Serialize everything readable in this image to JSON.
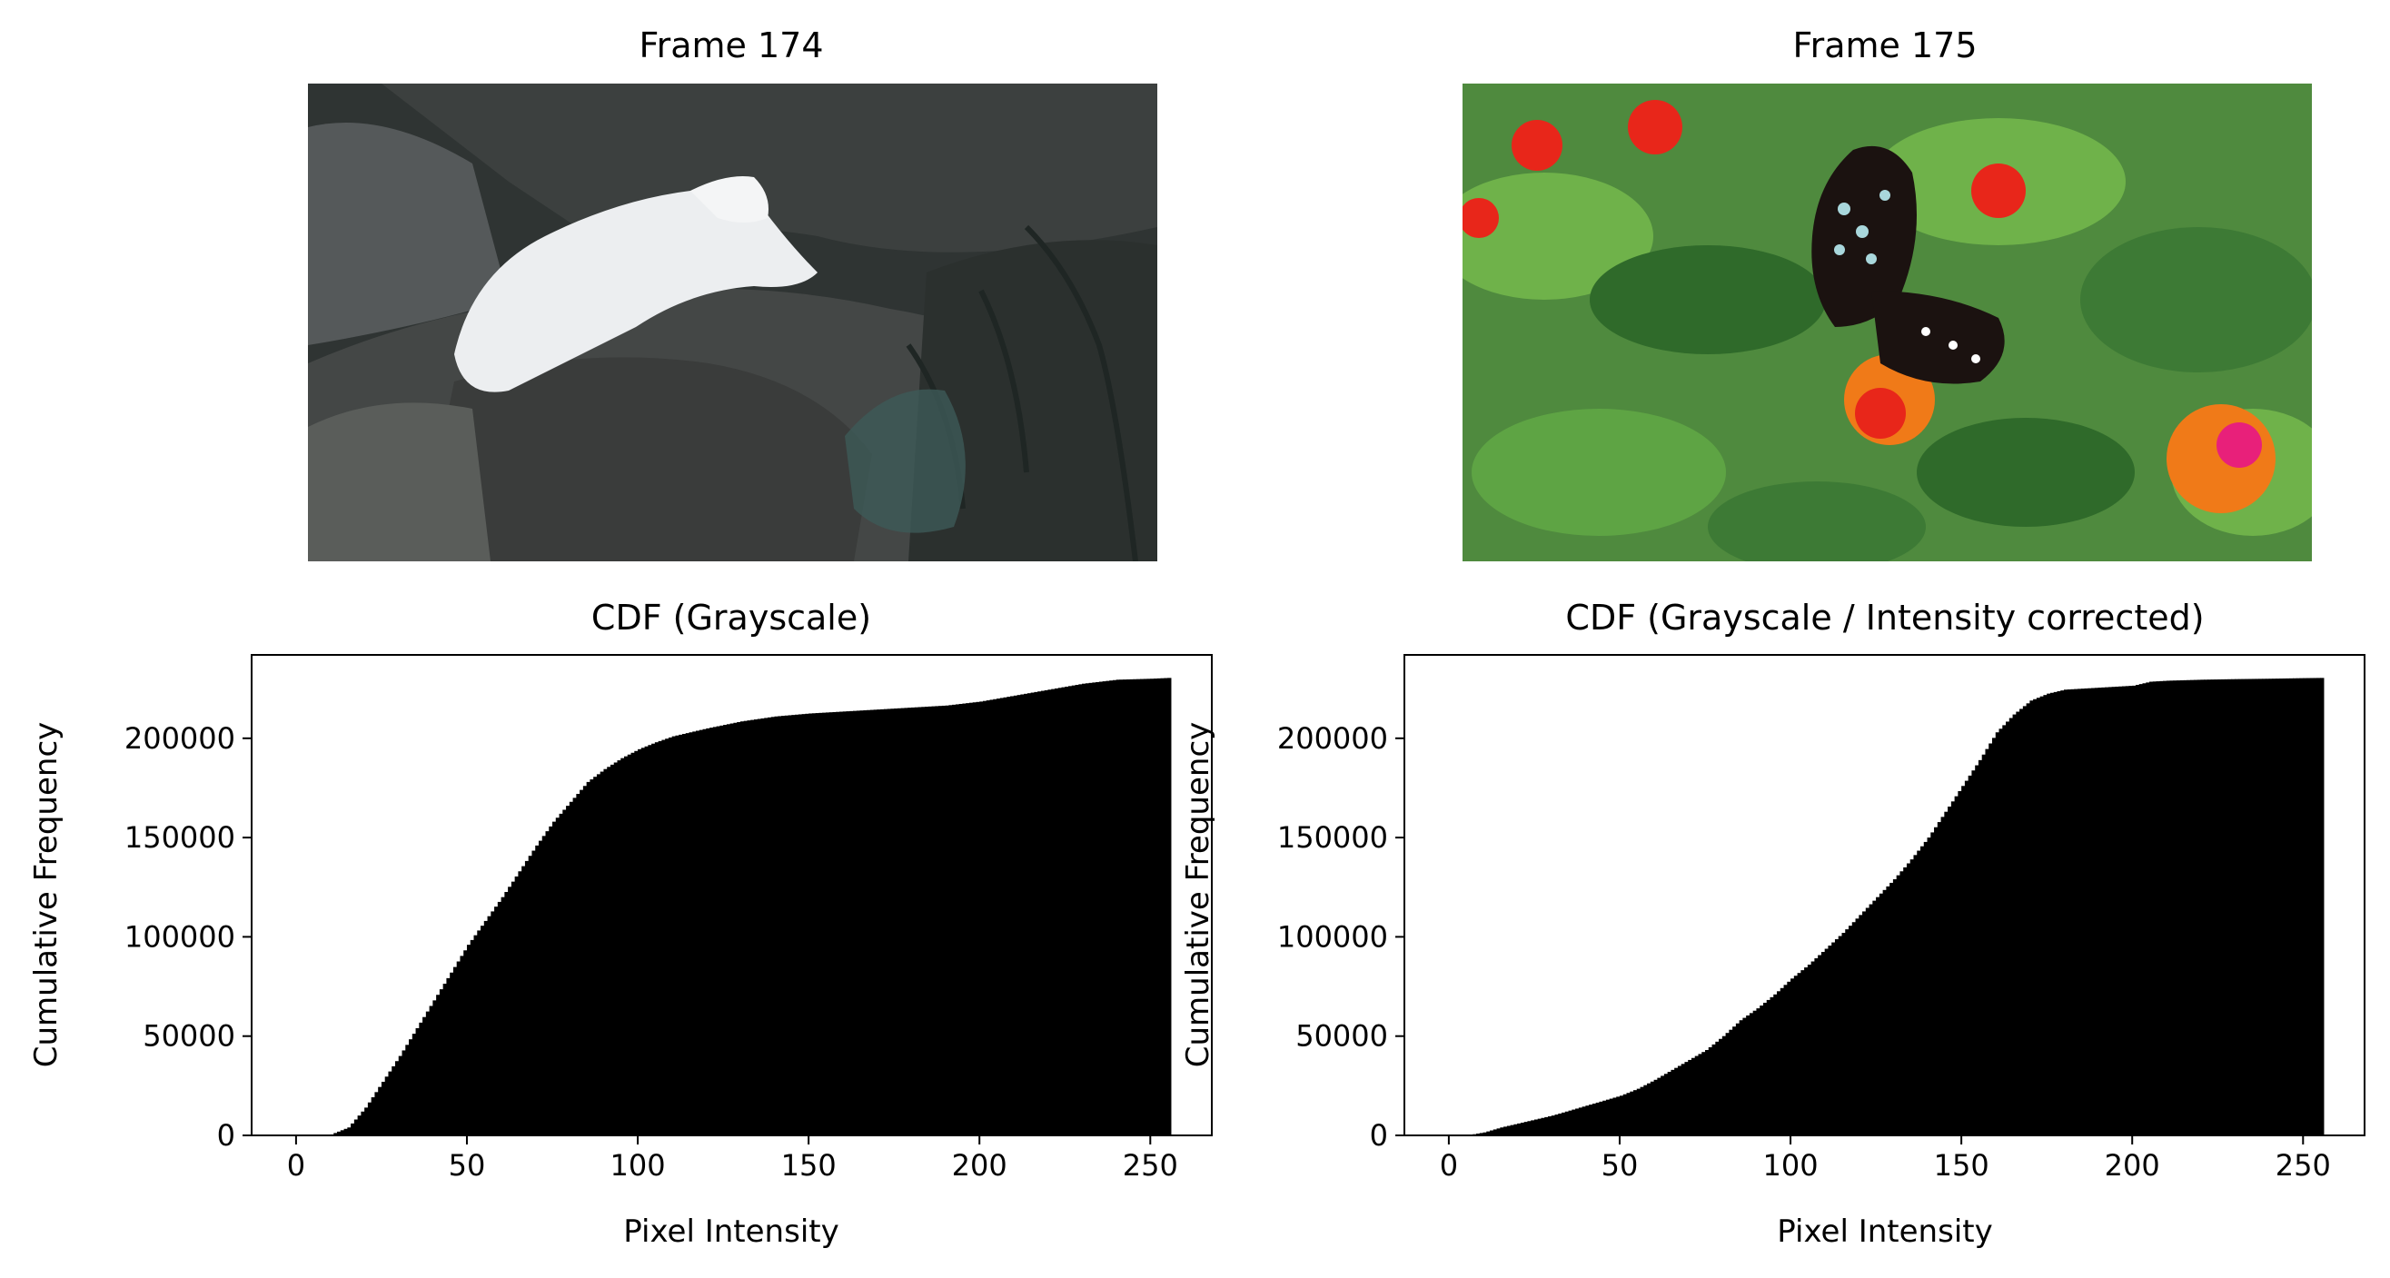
{
  "panels": [
    {
      "title": "Frame 174",
      "image": {
        "description_icon": "photo-arctic-fox-icon",
        "colors": {
          "sky_dark": "#2f3433",
          "rock_dark": "#3a3c3b",
          "rock_mid": "#5a5d5a",
          "fox": "#ecedef",
          "branches": "#1f2624",
          "needles": "#3d5a58"
        }
      }
    },
    {
      "title": "Frame 175",
      "image": {
        "description_icon": "photo-butterfly-flowers-icon",
        "colors": {
          "leaf_dark": "#2f6a2a",
          "leaf_light": "#6fb24a",
          "bg": "#4f8a3e",
          "flower_red": "#e8261a",
          "flower_orange": "#f07a18",
          "flower_pink": "#e8207a",
          "butterfly_dark": "#1b1210",
          "butterfly_spots": "#a9d7dc"
        }
      }
    }
  ],
  "chart_data": [
    {
      "type": "bar",
      "title": "CDF (Grayscale)",
      "xlabel": "Pixel Intensity",
      "ylabel": "Cumulative Frequency",
      "xlim": [
        -13,
        268
      ],
      "ylim": [
        0,
        242000
      ],
      "xticks": [
        0,
        50,
        100,
        150,
        200,
        250
      ],
      "yticks": [
        0,
        50000,
        100000,
        150000,
        200000
      ],
      "grid": false,
      "bar_color": "#000000",
      "x": [
        0,
        5,
        10,
        15,
        20,
        25,
        30,
        35,
        40,
        45,
        50,
        55,
        60,
        65,
        70,
        75,
        80,
        85,
        90,
        95,
        100,
        105,
        110,
        120,
        130,
        140,
        150,
        160,
        170,
        180,
        190,
        200,
        210,
        220,
        230,
        240,
        250,
        255
      ],
      "values": [
        0,
        0,
        500,
        4000,
        14000,
        27000,
        40000,
        54000,
        68000,
        82000,
        96000,
        108000,
        120000,
        133000,
        146000,
        158000,
        168000,
        178000,
        184500,
        190000,
        194500,
        198000,
        201000,
        205000,
        208500,
        211000,
        212500,
        213500,
        214500,
        215500,
        216500,
        218500,
        221500,
        224500,
        227500,
        229500,
        230000,
        230400
      ]
    },
    {
      "type": "bar",
      "title": "CDF (Grayscale / Intensity corrected)",
      "xlabel": "Pixel Intensity",
      "ylabel": "Cumulative Frequency",
      "xlim": [
        -13,
        268
      ],
      "ylim": [
        0,
        242000
      ],
      "xticks": [
        0,
        50,
        100,
        150,
        200,
        250
      ],
      "yticks": [
        0,
        50000,
        100000,
        150000,
        200000
      ],
      "grid": false,
      "bar_color": "#000000",
      "x": [
        0,
        5,
        10,
        15,
        20,
        25,
        30,
        35,
        40,
        45,
        50,
        55,
        60,
        65,
        70,
        75,
        80,
        85,
        90,
        95,
        100,
        105,
        110,
        115,
        120,
        125,
        130,
        135,
        140,
        145,
        150,
        155,
        160,
        165,
        170,
        175,
        180,
        190,
        200,
        205,
        210,
        220,
        230,
        240,
        250,
        255
      ],
      "values": [
        0,
        0,
        1500,
        4000,
        6000,
        8000,
        10000,
        12500,
        15000,
        17500,
        20000,
        23500,
        28000,
        33000,
        38000,
        43000,
        50000,
        58000,
        64000,
        71000,
        79000,
        86000,
        94000,
        102000,
        111000,
        120000,
        129000,
        139000,
        150000,
        163000,
        176000,
        189000,
        203000,
        212000,
        219000,
        222500,
        224500,
        225500,
        226500,
        228500,
        229000,
        229500,
        229800,
        230000,
        230300,
        230400
      ]
    }
  ]
}
